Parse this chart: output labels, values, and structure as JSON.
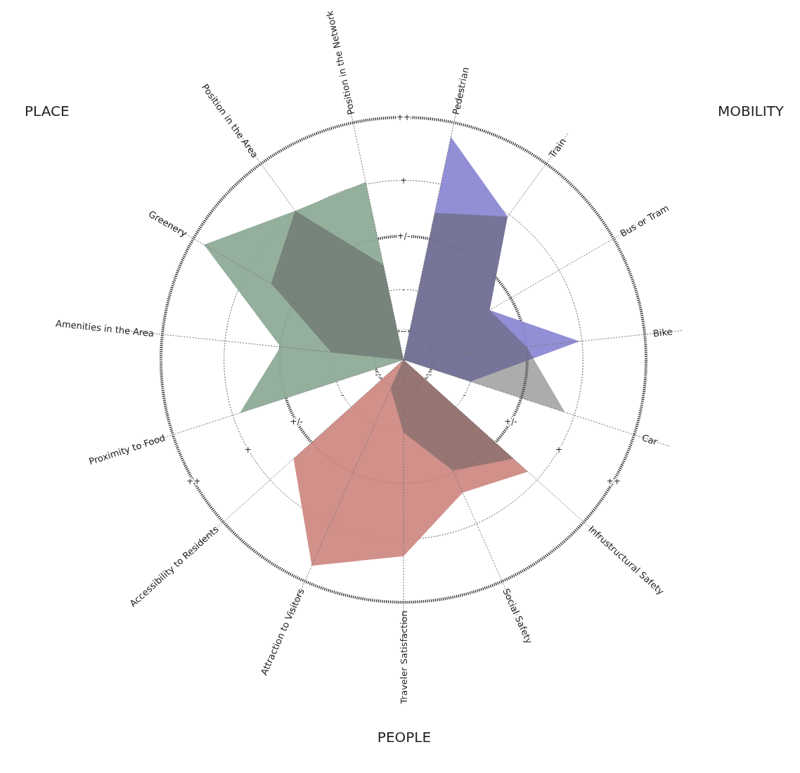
{
  "chart_data": {
    "type": "radar",
    "categories": [
      "Pedestrian",
      "Train",
      "Bus or Tram",
      "Bike",
      "Car",
      "Infrustructural Safety",
      "Social Safety",
      "Traveler Satisfaction",
      "Attraction to Visitors",
      "Accessibility to Residents",
      "Proximity to Food",
      "Amenities in the Area",
      "Greenery",
      "Position in the Area",
      "Position in the Network"
    ],
    "series": [
      {
        "color": "#8fab98",
        "values": [
          null,
          null,
          null,
          null,
          null,
          null,
          null,
          null,
          null,
          null,
          3.55,
          2.55,
          4.75,
          3.8,
          3.75
        ]
      },
      {
        "color": "#5a5a5a",
        "values": [
          null,
          null,
          null,
          null,
          null,
          null,
          null,
          null,
          null,
          null,
          0,
          1.5,
          3.15,
          3.8,
          2
        ]
      },
      {
        "color": "#8c89d4",
        "values": [
          4.7,
          3.65,
          2.05,
          3.65,
          1.45,
          null,
          null,
          null,
          null,
          null,
          null,
          null,
          null,
          null,
          null
        ]
      },
      {
        "color": "#5a5a5a",
        "values": [
          3.1,
          3.65,
          2.05,
          2.55,
          3.5,
          null,
          null,
          null,
          null,
          null,
          null,
          null,
          null,
          null,
          null
        ]
      },
      {
        "color": "#d08a85",
        "values": [
          null,
          null,
          null,
          null,
          null,
          3.45,
          3,
          4.05,
          4.65,
          3.05,
          null,
          null,
          null,
          null,
          null
        ]
      },
      {
        "color": "#5a5a5a",
        "values": [
          null,
          null,
          null,
          null,
          null,
          3.05,
          2.5,
          1.5,
          0.65,
          0,
          null,
          null,
          null,
          null,
          null
        ]
      }
    ],
    "ylim": [
      0,
      5
    ],
    "yticks": [
      {
        "value": 0.6,
        "label": "--"
      },
      {
        "value": 1.45,
        "label": "-"
      },
      {
        "value": 2.55,
        "label": "+/-"
      },
      {
        "value": 3.7,
        "label": "+"
      },
      {
        "value": 5,
        "label": "++"
      }
    ],
    "grid": true,
    "annotations": [
      "PLACE",
      "MOBILITY",
      "PEOPLE"
    ]
  }
}
